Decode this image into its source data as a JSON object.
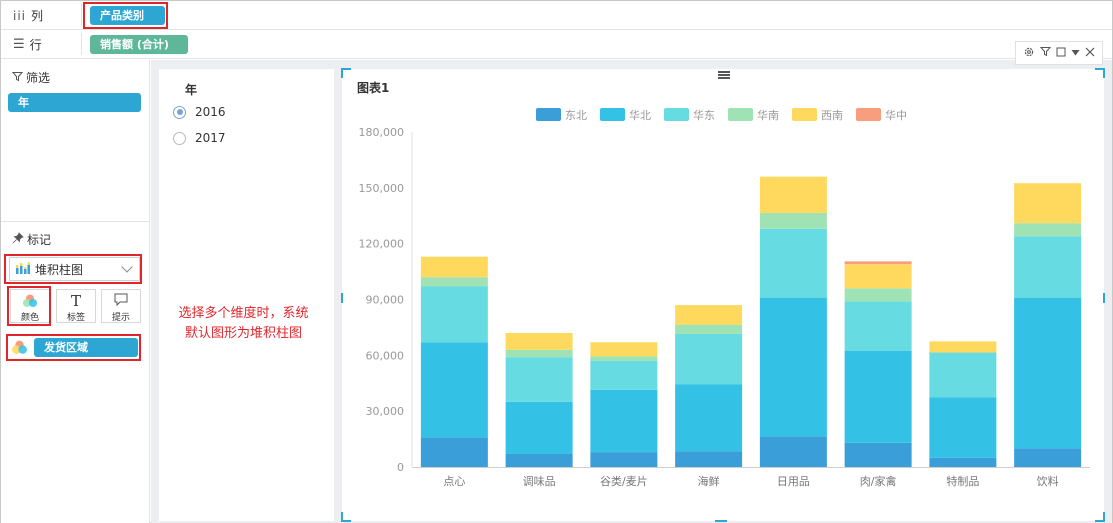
{
  "shelves": {
    "columns": {
      "icon": "columns-icon",
      "label": "列",
      "field": "产品类别"
    },
    "rows": {
      "icon": "rows-icon",
      "label": "行",
      "field": "销售额 (合计)"
    }
  },
  "filter_section": {
    "title": "筛选",
    "pill": "年"
  },
  "marks_section": {
    "title": "标记",
    "chart_type": "堆积柱图",
    "buttons": [
      {
        "label": "颜色",
        "icon": "color-icon"
      },
      {
        "label": "标签",
        "icon": "text-label-icon"
      },
      {
        "label": "提示",
        "icon": "tooltip-icon"
      }
    ],
    "color_field": "发货区域"
  },
  "annotation": {
    "line1": "选择多个维度时，系统",
    "line2": "默认图形为堆积柱图"
  },
  "year_filter": {
    "title": "年",
    "options": [
      {
        "label": "2016",
        "selected": true
      },
      {
        "label": "2017",
        "selected": false
      }
    ]
  },
  "chart_title": "图表1",
  "chart_data": {
    "type": "bar",
    "stacked": true,
    "title": "图表1",
    "categories": [
      "点心",
      "调味品",
      "谷类/麦片",
      "海鲜",
      "日用品",
      "肉/家禽",
      "特制品",
      "饮料"
    ],
    "series": [
      {
        "name": "东北",
        "color": "#3a9ed9",
        "values": [
          16000,
          7000,
          8000,
          8500,
          16500,
          13000,
          5000,
          10000
        ]
      },
      {
        "name": "华北",
        "color": "#33c1e6",
        "values": [
          51000,
          28000,
          33500,
          36000,
          74500,
          49500,
          32500,
          81000
        ]
      },
      {
        "name": "华东",
        "color": "#66dce2",
        "values": [
          30000,
          24000,
          15500,
          27000,
          37000,
          26500,
          24000,
          33000
        ]
      },
      {
        "name": "华南",
        "color": "#9fe3b4",
        "values": [
          5000,
          4000,
          2500,
          5000,
          8500,
          7000,
          0,
          7000
        ]
      },
      {
        "name": "西南",
        "color": "#ffd95e",
        "values": [
          11000,
          9000,
          7500,
          10500,
          19500,
          13000,
          6000,
          21500
        ]
      },
      {
        "name": "华中",
        "color": "#f99d7f",
        "values": [
          0,
          0,
          0,
          0,
          0,
          1500,
          0,
          0
        ]
      }
    ],
    "ylim": [
      0,
      180000
    ],
    "yticks": [
      "0",
      "30,000",
      "60,000",
      "90,000",
      "120,000",
      "150,000",
      "180,000"
    ],
    "legend_position": "top-center"
  }
}
